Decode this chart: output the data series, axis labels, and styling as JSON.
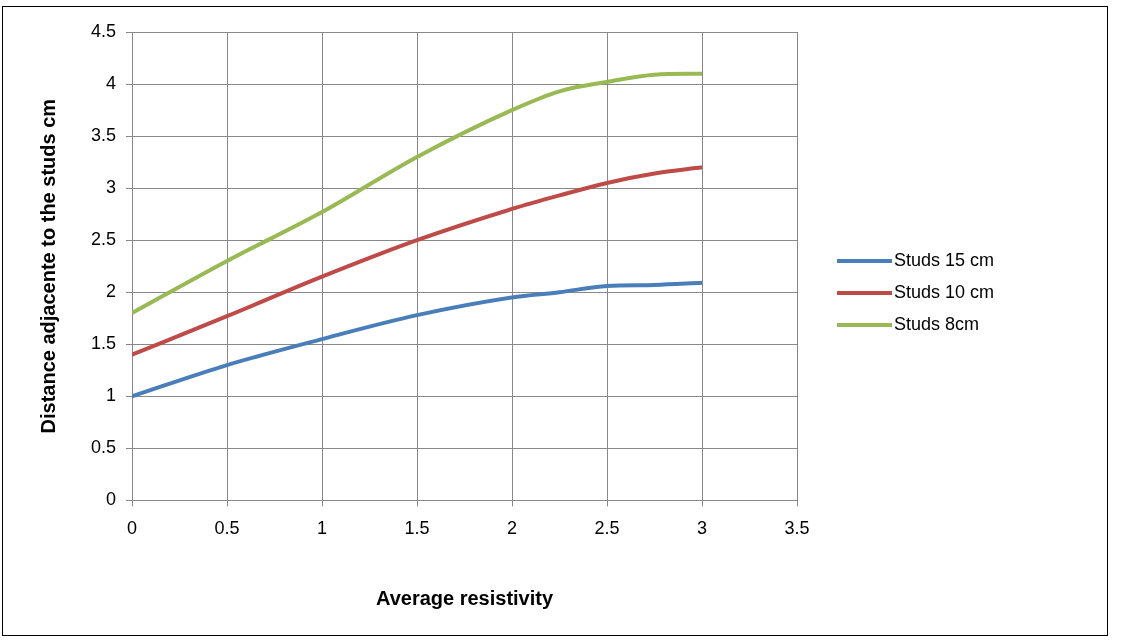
{
  "chart_data": {
    "type": "line",
    "xlabel": "Average resistivity",
    "ylabel": "Distance adjacente to the studs cm",
    "x": [
      0,
      0.5,
      1,
      1.5,
      2,
      2.25,
      2.5,
      2.75,
      3
    ],
    "series": [
      {
        "name": "Studs 15 cm",
        "color": "#4a7ebb",
        "values": [
          1.0,
          1.3,
          1.55,
          1.78,
          1.95,
          2.0,
          2.06,
          2.07,
          2.09
        ]
      },
      {
        "name": "Studs 10 cm",
        "color": "#be4b48",
        "values": [
          1.4,
          1.77,
          2.15,
          2.5,
          2.8,
          2.93,
          3.05,
          3.14,
          3.2
        ]
      },
      {
        "name": "Studs 8cm",
        "color": "#98b954",
        "values": [
          1.8,
          2.3,
          2.77,
          3.3,
          3.75,
          3.93,
          4.02,
          4.09,
          4.1
        ]
      }
    ],
    "xlim": [
      0,
      3.5
    ],
    "xticks": [
      0,
      0.5,
      1,
      1.5,
      2,
      2.5,
      3,
      3.5
    ],
    "ylim": [
      0,
      4.5
    ],
    "yticks": [
      0,
      0.5,
      1,
      1.5,
      2,
      2.5,
      3,
      3.5,
      4,
      4.5
    ],
    "grid": true,
    "legend": "right",
    "marker": "none",
    "line_style": "solid"
  }
}
